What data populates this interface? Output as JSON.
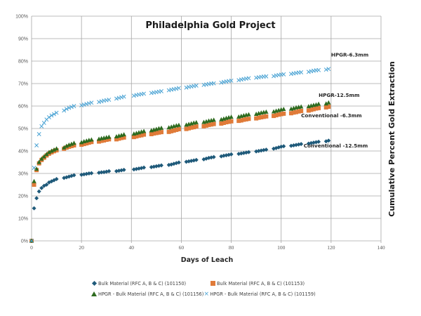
{
  "chart_data": {
    "type": "scatter",
    "title": "Philadelphia Gold Project",
    "xlabel": "Days of Leach",
    "ylabel": "Cumulative Percent Gold Extraction",
    "xlim": [
      0,
      140
    ],
    "ylim": [
      0,
      100
    ],
    "x_ticks": [
      "0",
      "20",
      "40",
      "60",
      "80",
      "100",
      "120",
      "140"
    ],
    "y_ticks": [
      "0%",
      "10%",
      "20%",
      "30%",
      "40%",
      "50%",
      "60%",
      "70%",
      "80%",
      "90%",
      "100%"
    ],
    "grid": true,
    "legend_position": "bottom",
    "series": [
      {
        "name": "Bulk Material (RFC A, B & C) (101150)",
        "marker": "diamond",
        "color": "#1f5a7a",
        "x": [
          0,
          1,
          2,
          3,
          4,
          5,
          6,
          7,
          8,
          9,
          10,
          13,
          14,
          15,
          16,
          17,
          20,
          21,
          22,
          23,
          24,
          27,
          28,
          29,
          30,
          31,
          34,
          35,
          36,
          37,
          41,
          42,
          43,
          44,
          45,
          48,
          49,
          50,
          51,
          52,
          55,
          56,
          57,
          58,
          59,
          62,
          63,
          64,
          65,
          66,
          69,
          70,
          71,
          72,
          73,
          76,
          77,
          78,
          79,
          80,
          83,
          84,
          85,
          86,
          87,
          90,
          91,
          92,
          93,
          94,
          97,
          98,
          99,
          100,
          101,
          104,
          105,
          106,
          107,
          108,
          111,
          112,
          113,
          114,
          115,
          118,
          119
        ],
        "y": [
          0,
          14.5,
          19,
          22,
          23.5,
          24.5,
          25,
          26,
          26.5,
          27,
          27.5,
          28,
          28.3,
          28.6,
          28.9,
          29.2,
          29.4,
          29.6,
          29.8,
          30,
          30.1,
          30.3,
          30.5,
          30.6,
          30.8,
          31,
          31,
          31.2,
          31.4,
          31.6,
          31.8,
          32,
          32.2,
          32.4,
          32.6,
          32.8,
          33,
          33.2,
          33.4,
          33.6,
          33.8,
          34,
          34.3,
          34.6,
          34.9,
          35.2,
          35.4,
          35.6,
          35.8,
          36,
          36.3,
          36.6,
          36.9,
          37.1,
          37.3,
          37.6,
          37.9,
          38.1,
          38.3,
          38.5,
          38.7,
          38.9,
          39.1,
          39.3,
          39.5,
          39.8,
          40,
          40.2,
          40.4,
          40.6,
          41,
          41.3,
          41.6,
          41.9,
          42.1,
          42.3,
          42.5,
          42.7,
          42.9,
          43.1,
          43.3,
          43.5,
          43.7,
          43.9,
          44.1,
          44.3,
          44.6
        ]
      },
      {
        "name": "Bulk Material (RFC A, B & C) (101153)",
        "marker": "square",
        "color": "#e07b39",
        "annotation": "Conventional -6.3mm",
        "x": [
          0,
          1,
          2,
          3,
          4,
          5,
          6,
          7,
          8,
          9,
          10,
          13,
          14,
          15,
          16,
          17,
          20,
          21,
          22,
          23,
          24,
          27,
          28,
          29,
          30,
          31,
          34,
          35,
          36,
          37,
          41,
          42,
          43,
          44,
          45,
          48,
          49,
          50,
          51,
          52,
          55,
          56,
          57,
          58,
          59,
          62,
          63,
          64,
          65,
          66,
          69,
          70,
          71,
          72,
          73,
          76,
          77,
          78,
          79,
          80,
          83,
          84,
          85,
          86,
          87,
          90,
          91,
          92,
          93,
          94,
          97,
          98,
          99,
          100,
          101,
          104,
          105,
          106,
          107,
          108,
          111,
          112,
          113,
          114,
          115,
          118,
          119
        ],
        "y": [
          0,
          25,
          31.5,
          34.5,
          36,
          37,
          38,
          38.8,
          39.4,
          39.9,
          40.3,
          41,
          41.5,
          41.9,
          42.2,
          42.5,
          42.8,
          43.1,
          43.4,
          43.7,
          44,
          44.2,
          44.5,
          44.7,
          45,
          45.2,
          45.2,
          45.5,
          45.8,
          46,
          46.2,
          46.5,
          46.8,
          47,
          47.3,
          47.5,
          47.8,
          48,
          48.2,
          48.4,
          48.5,
          48.8,
          49.1,
          49.4,
          49.7,
          49.8,
          50.1,
          50.4,
          50.6,
          50.9,
          51,
          51.3,
          51.6,
          51.8,
          52,
          52.2,
          52.5,
          52.8,
          53,
          53.2,
          53.4,
          53.6,
          53.9,
          54.1,
          54.3,
          54.5,
          54.8,
          55,
          55.2,
          55.4,
          55.6,
          55.9,
          56.2,
          56.4,
          56.6,
          56.8,
          57.1,
          57.3,
          57.6,
          57.8,
          58,
          58.3,
          58.6,
          58.9,
          59.1,
          59.4,
          59.7
        ]
      },
      {
        "name": "HPGR - Bulk Material (RFC A, B & C) (101156)",
        "marker": "triangle",
        "color": "#2e6b1f",
        "annotation": "HPGR-12.5mm",
        "x": [
          0,
          1,
          2,
          3,
          4,
          5,
          6,
          7,
          8,
          9,
          10,
          13,
          14,
          15,
          16,
          17,
          20,
          21,
          22,
          23,
          24,
          27,
          28,
          29,
          30,
          31,
          34,
          35,
          36,
          37,
          41,
          42,
          43,
          44,
          45,
          48,
          49,
          50,
          51,
          52,
          55,
          56,
          57,
          58,
          59,
          62,
          63,
          64,
          65,
          66,
          69,
          70,
          71,
          72,
          73,
          76,
          77,
          78,
          79,
          80,
          83,
          84,
          85,
          86,
          87,
          90,
          91,
          92,
          93,
          94,
          97,
          98,
          99,
          100,
          101,
          104,
          105,
          106,
          107,
          108,
          111,
          112,
          113,
          114,
          115,
          118,
          119
        ],
        "y": [
          0,
          26.5,
          32,
          35,
          36.5,
          37.5,
          38.5,
          39.4,
          40,
          40.5,
          41,
          41.5,
          42.2,
          42.7,
          43.1,
          43.5,
          43.8,
          44.2,
          44.5,
          44.8,
          45,
          45.3,
          45.6,
          45.8,
          46,
          46.2,
          46.4,
          46.7,
          47,
          47.3,
          47.6,
          47.9,
          48.2,
          48.5,
          48.8,
          49.1,
          49.4,
          49.7,
          50,
          50.2,
          50.4,
          50.7,
          51,
          51.3,
          51.5,
          51.6,
          51.9,
          52.2,
          52.5,
          52.7,
          52.8,
          53.1,
          53.4,
          53.6,
          53.8,
          54,
          54.3,
          54.6,
          54.9,
          55.1,
          55.2,
          55.5,
          55.8,
          56,
          56.2,
          56.4,
          56.7,
          57,
          57.2,
          57.4,
          57.5,
          57.8,
          58.1,
          58.4,
          58.6,
          58.7,
          59,
          59.3,
          59.5,
          59.7,
          59.8,
          60.1,
          60.4,
          60.6,
          60.9,
          61,
          61.5
        ]
      },
      {
        "name": "HPGR - Bulk Material (RFC A, B & C) (101159)",
        "marker": "x",
        "color": "#4aa3d4",
        "annotation": "HPGR-6.3mm",
        "x": [
          0,
          1,
          2,
          3,
          4,
          5,
          6,
          7,
          8,
          9,
          10,
          13,
          14,
          15,
          16,
          17,
          20,
          21,
          22,
          23,
          24,
          27,
          28,
          29,
          30,
          31,
          34,
          35,
          36,
          37,
          41,
          42,
          43,
          44,
          45,
          48,
          49,
          50,
          51,
          52,
          55,
          56,
          57,
          58,
          59,
          62,
          63,
          64,
          65,
          66,
          69,
          70,
          71,
          72,
          73,
          76,
          77,
          78,
          79,
          80,
          83,
          84,
          85,
          86,
          87,
          90,
          91,
          92,
          93,
          94,
          97,
          98,
          99,
          100,
          101,
          104,
          105,
          106,
          107,
          108,
          111,
          112,
          113,
          114,
          115,
          118,
          119
        ],
        "y": [
          0,
          32.5,
          42.5,
          47.5,
          51,
          52.5,
          54,
          55,
          55.8,
          56.4,
          57,
          58,
          58.7,
          59.2,
          59.6,
          60,
          60.3,
          60.6,
          60.9,
          61.2,
          61.5,
          61.8,
          62.1,
          62.4,
          62.6,
          62.8,
          63.3,
          63.6,
          63.9,
          64.2,
          64.6,
          64.9,
          65.1,
          65.3,
          65.5,
          65.8,
          66,
          66.2,
          66.4,
          66.6,
          67,
          67.3,
          67.5,
          67.7,
          68,
          68.2,
          68.5,
          68.7,
          68.9,
          69.1,
          69.4,
          69.6,
          69.8,
          70,
          70.1,
          70.4,
          70.7,
          70.9,
          71.1,
          71.3,
          71.5,
          71.8,
          72,
          72.2,
          72.4,
          72.6,
          72.8,
          73,
          73.1,
          73.2,
          73.3,
          73.6,
          73.8,
          74,
          74.1,
          74.3,
          74.5,
          74.7,
          74.9,
          75,
          75.2,
          75.5,
          75.7,
          75.9,
          76,
          76.2,
          76.5
        ]
      }
    ],
    "annotations": [
      {
        "text": "HPGR-6.3mm",
        "x": 120,
        "y": 82
      },
      {
        "text": "HPGR-12.5mm",
        "x": 115,
        "y": 64
      },
      {
        "text": "Conventional -6.3mm",
        "x": 108,
        "y": 55
      },
      {
        "text": "Conventional -12.5mm",
        "x": 109,
        "y": 41.5
      }
    ]
  }
}
